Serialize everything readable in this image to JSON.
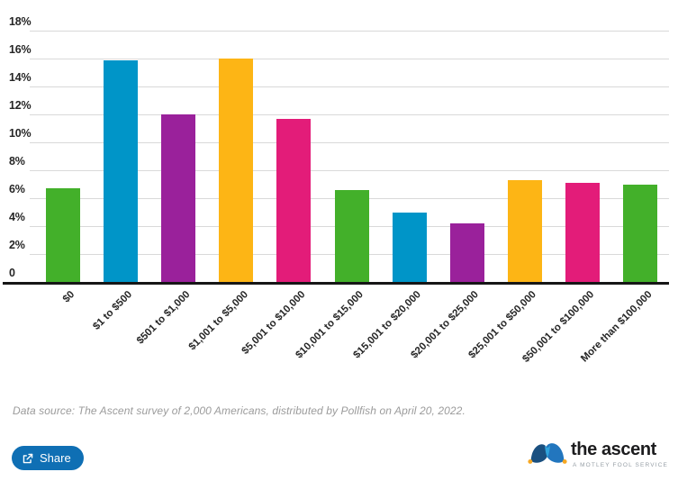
{
  "chart_data": {
    "type": "bar",
    "title": "",
    "xlabel": "",
    "ylabel": "",
    "categories": [
      "$0",
      "$1 to $500",
      "$501 to $1,000",
      "$1,001 to $5,000",
      "$5,001 to $10,000",
      "$10,001 to $15,000",
      "$15,001 to $20,000",
      "$20,001 to $25,000",
      "$25,001 to $50,000",
      "$50,001 to $100,000",
      "More than $100,000"
    ],
    "values": [
      6.7,
      15.9,
      12.0,
      16.0,
      11.7,
      6.6,
      5.0,
      4.2,
      7.3,
      7.1,
      7.0
    ],
    "unit": "%",
    "bar_colors": [
      "#43b02a",
      "#0095c8",
      "#9a219b",
      "#fdb515",
      "#e31c79"
    ],
    "ylim": [
      0,
      18
    ],
    "grid": true,
    "legend": "none",
    "yticks": [
      {
        "value": 0,
        "label": "0"
      },
      {
        "value": 2,
        "label": "2%"
      },
      {
        "value": 4,
        "label": "4%"
      },
      {
        "value": 6,
        "label": "6%"
      },
      {
        "value": 8,
        "label": "8%"
      },
      {
        "value": 10,
        "label": "10%"
      },
      {
        "value": 12,
        "label": "12%"
      },
      {
        "value": 14,
        "label": "14%"
      },
      {
        "value": 16,
        "label": "16%"
      },
      {
        "value": 18,
        "label": "18%"
      }
    ]
  },
  "footer": {
    "source_text": "Data source: The Ascent survey of 2,000 Americans, distributed by Pollfish on April 20, 2022.",
    "share_label": "Share"
  },
  "branding": {
    "name": "the ascent",
    "tagline": "A MOTLEY FOOL SERVICE"
  },
  "colors": {
    "share_button": "#0f6fb4",
    "gridline": "#d9d9d9",
    "axis": "#161616",
    "text": "#262626",
    "source_text": "#9b9b9b",
    "hat_dark_blue": "#1a5080",
    "hat_mid_blue": "#2276be",
    "hat_light_blue": "#2fa3dc",
    "hat_dot_orange": "#f7a823"
  }
}
